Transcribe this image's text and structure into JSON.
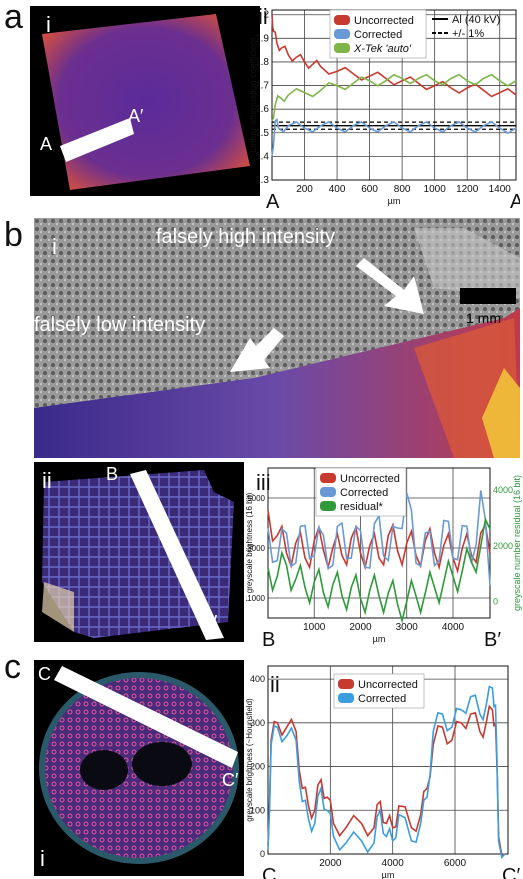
{
  "figure": {
    "panel_letters": [
      "a",
      "b",
      "c"
    ],
    "roman": {
      "i": "i",
      "ii": "ii",
      "iii": "iii"
    },
    "a_labels": {
      "A": "A",
      "A_prime": "A′"
    },
    "b_labels": {
      "high": "falsely high intensity",
      "low": "falsely  low intensity",
      "scale": "1 mm",
      "B": "B",
      "B_prime": "B′"
    },
    "c_labels": {
      "C": "C",
      "C_prime": "C′"
    },
    "colors": {
      "uncorrected": "#c8392f",
      "corrected": "#6a9ad6",
      "corrected_c": "#3a9ee0",
      "xtek": "#7fb548",
      "residual": "#2e9a3a"
    }
  },
  "chart_data": [
    {
      "type": "line",
      "panel": "a-ii",
      "xlabel": "µm",
      "ylabel": "Linear attenuation coefficient",
      "x_ticks": [
        "200",
        "400",
        "600",
        "800",
        "1000",
        "1200",
        "1400"
      ],
      "y_ticks": [
        "1.3",
        "1.4",
        "1.5",
        "1.6",
        "1.7",
        "1.8",
        "1.9",
        "2"
      ],
      "xlim": [
        0,
        1500
      ],
      "ylim": [
        1.3,
        2.02
      ],
      "end_labels": {
        "left": "A",
        "right": "A′"
      },
      "legend": [
        {
          "name": "Uncorrected",
          "color": "#c8392f"
        },
        {
          "name": "Corrected",
          "color": "#6a9ad6"
        },
        {
          "name": "X-Tek 'auto'",
          "color": "#7fb548"
        }
      ],
      "legend2": [
        {
          "name": "Al (40 kV)",
          "style": "solid"
        },
        {
          "name": "+/- 1%",
          "style": "dashed"
        }
      ],
      "ref_lines": [
        {
          "y": 1.53,
          "style": "solid"
        },
        {
          "y": 1.515,
          "style": "dashed"
        },
        {
          "y": 1.545,
          "style": "dashed"
        }
      ],
      "series": [
        {
          "name": "Uncorrected",
          "x": [
            0,
            10,
            30,
            60,
            100,
            150,
            200,
            250,
            300,
            400,
            500,
            600,
            700,
            800,
            900,
            1000,
            1100,
            1200,
            1300,
            1400,
            1500
          ],
          "values": [
            2.0,
            1.93,
            1.88,
            1.86,
            1.83,
            1.82,
            1.8,
            1.79,
            1.78,
            1.76,
            1.75,
            1.74,
            1.73,
            1.72,
            1.71,
            1.7,
            1.69,
            1.69,
            1.68,
            1.67,
            1.66
          ]
        },
        {
          "name": "Corrected",
          "x": [
            0,
            20,
            40,
            100,
            200,
            300,
            400,
            500,
            600,
            700,
            800,
            900,
            1000,
            1100,
            1200,
            1300,
            1400,
            1500
          ],
          "values": [
            1.4,
            1.55,
            1.52,
            1.53,
            1.52,
            1.53,
            1.52,
            1.53,
            1.52,
            1.53,
            1.52,
            1.53,
            1.52,
            1.53,
            1.52,
            1.53,
            1.52,
            1.52
          ]
        },
        {
          "name": "X-Tek 'auto'",
          "x": [
            0,
            20,
            50,
            100,
            200,
            300,
            400,
            500,
            600,
            700,
            800,
            900,
            1000,
            1100,
            1200,
            1300,
            1400,
            1500
          ],
          "values": [
            1.55,
            1.62,
            1.65,
            1.66,
            1.67,
            1.68,
            1.7,
            1.71,
            1.72,
            1.72,
            1.73,
            1.73,
            1.72,
            1.73,
            1.72,
            1.73,
            1.72,
            1.72
          ]
        }
      ]
    },
    {
      "type": "line",
      "panel": "b-iii",
      "xlabel": "µm",
      "ylabel": "greyscale brightness (16 bit)",
      "ylabel2": "greyscale number residual (16 bit)",
      "x_ticks": [
        "1000",
        "2000",
        "3000",
        "4000"
      ],
      "y_ticks": [
        "11000",
        "13000",
        "15000"
      ],
      "y2_ticks": [
        "0",
        "2000",
        "4000"
      ],
      "xlim": [
        0,
        4800
      ],
      "ylim": [
        10200,
        16200
      ],
      "y2lim": [
        -600,
        4800
      ],
      "end_labels": {
        "left": "B",
        "right": "B′"
      },
      "legend": [
        {
          "name": "Uncorrected",
          "color": "#c8392f"
        },
        {
          "name": "Corrected",
          "color": "#6a9ad6"
        },
        {
          "name": "residual*",
          "color": "#2e9a3a"
        }
      ],
      "series": [
        {
          "name": "Uncorrected",
          "x": [
            0,
            200,
            400,
            600,
            800,
            1000,
            1200,
            1400,
            1600,
            1800,
            2000,
            2200,
            2400,
            2600,
            2800,
            3000,
            3200,
            3400,
            3600,
            3800,
            4000,
            4200,
            4400,
            4600,
            4800
          ],
          "values": [
            14500,
            13500,
            12800,
            13200,
            12600,
            13300,
            12900,
            13000,
            12700,
            13400,
            12800,
            13100,
            12600,
            13500,
            12900,
            13200,
            12700,
            13300,
            12800,
            13100,
            12600,
            13000,
            12700,
            13600,
            12800
          ]
        },
        {
          "name": "Corrected",
          "x": [
            0,
            200,
            400,
            600,
            800,
            1000,
            1200,
            1400,
            1600,
            1800,
            2000,
            2200,
            2400,
            2600,
            2800,
            3000,
            3200,
            3400,
            3600,
            3800,
            4000,
            4200,
            4400,
            4600,
            4800
          ],
          "values": [
            13800,
            12500,
            13600,
            12400,
            13900,
            12700,
            13500,
            12300,
            14000,
            12600,
            13700,
            12200,
            14300,
            12500,
            13800,
            15200,
            12400,
            13600,
            12300,
            14100,
            12600,
            13900,
            12400,
            15300,
            11500
          ]
        },
        {
          "name": "residual*",
          "axis": "right",
          "x": [
            0,
            200,
            400,
            600,
            800,
            1000,
            1200,
            1400,
            1600,
            1800,
            2000,
            2200,
            2400,
            2600,
            2800,
            3000,
            3200,
            3400,
            3600,
            3800,
            4000,
            4200,
            4400,
            4600,
            4800
          ],
          "values": [
            1200,
            900,
            1300,
            800,
            500,
            700,
            300,
            600,
            200,
            500,
            100,
            400,
            200,
            300,
            -100,
            0,
            200,
            300,
            500,
            700,
            900,
            1100,
            1400,
            2000,
            2600
          ]
        }
      ]
    },
    {
      "type": "line",
      "panel": "c-ii",
      "xlabel": "µm",
      "ylabel": "greyscale brightness (~Hounsfield)",
      "x_ticks": [
        "2000",
        "4000",
        "6000"
      ],
      "y_ticks": [
        "0",
        "100",
        "200",
        "300",
        "400"
      ],
      "xlim": [
        0,
        7700
      ],
      "ylim": [
        0,
        430
      ],
      "end_labels": {
        "left": "C",
        "right": "C′"
      },
      "legend": [
        {
          "name": "Uncorrected",
          "color": "#c8392f"
        },
        {
          "name": "Corrected",
          "color": "#3a9ee0"
        }
      ],
      "series": [
        {
          "name": "Uncorrected",
          "x": [
            0,
            100,
            300,
            600,
            900,
            1100,
            1300,
            1500,
            1700,
            1900,
            2100,
            2500,
            3000,
            3400,
            3600,
            3800,
            4000,
            4200,
            4600,
            4900,
            5100,
            5300,
            5600,
            5900,
            6200,
            6500,
            6800,
            7000,
            7200,
            7300,
            7400,
            7600
          ],
          "values": [
            20,
            260,
            300,
            290,
            280,
            150,
            110,
            100,
            170,
            130,
            70,
            60,
            70,
            60,
            120,
            70,
            60,
            110,
            60,
            90,
            150,
            250,
            290,
            260,
            300,
            320,
            280,
            300,
            330,
            300,
            40,
            0
          ]
        },
        {
          "name": "Corrected",
          "x": [
            0,
            100,
            300,
            600,
            900,
            1100,
            1300,
            1500,
            1700,
            1900,
            2100,
            2500,
            3000,
            3400,
            3600,
            3800,
            4000,
            4200,
            4600,
            4900,
            5100,
            5300,
            5600,
            5900,
            6200,
            6500,
            6800,
            7000,
            7200,
            7300,
            7400,
            7600
          ],
          "values": [
            10,
            250,
            290,
            270,
            260,
            120,
            80,
            70,
            150,
            100,
            40,
            25,
            30,
            25,
            100,
            40,
            30,
            90,
            30,
            70,
            130,
            280,
            320,
            290,
            330,
            360,
            320,
            340,
            380,
            340,
            30,
            0
          ]
        }
      ]
    }
  ]
}
